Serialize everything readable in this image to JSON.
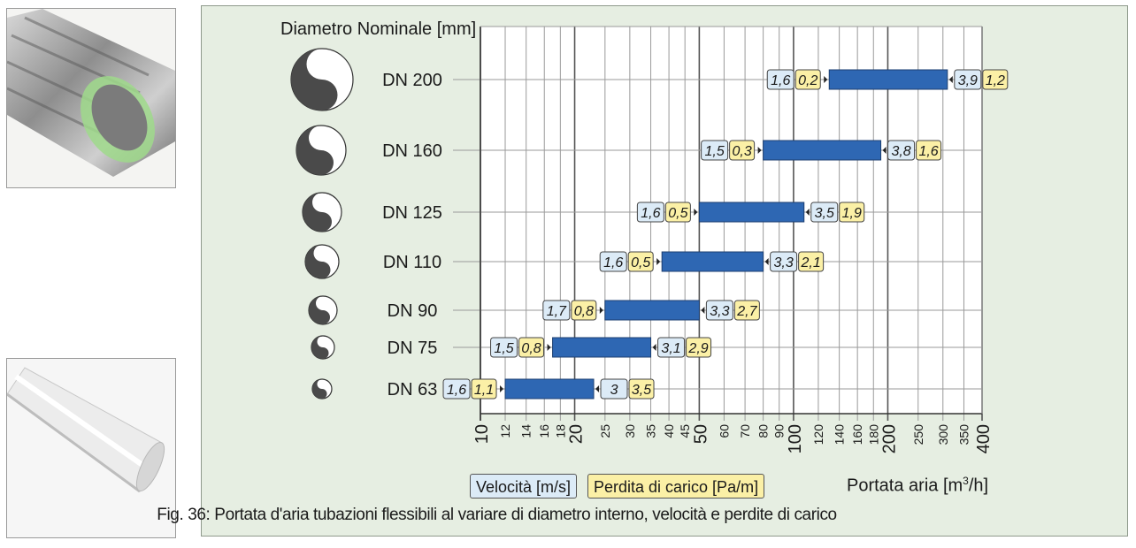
{
  "chart_data": {
    "type": "bar",
    "subtype": "floating-range",
    "x_scale": "log",
    "xlim": [
      10,
      400
    ],
    "title": "Fig. 36: Portata d'aria tubazioni flessibili al variare di diametro interno, velocità e perdite di carico",
    "ylabel": "Diametro Nominale [mm]",
    "xlabel": "Portata aria [m³/h]",
    "xlabel_base": "Portata aria [m",
    "xlabel_sup": "3",
    "xlabel_tail": "/h]",
    "x_ticks": [
      "10",
      "12",
      "14",
      "16",
      "18",
      "20",
      "25",
      "30",
      "35",
      "40",
      "45",
      "50",
      "60",
      "70",
      "80",
      "90",
      "100",
      "120",
      "140",
      "160",
      "180",
      "200",
      "250",
      "300",
      "350",
      "400"
    ],
    "x_ticks_major": [
      "10",
      "20",
      "50",
      "100",
      "200",
      "400"
    ],
    "legend": {
      "velocity": "Velocità [m/s]",
      "pressure_loss": "Perdita di carico [Pa/m]"
    },
    "colors": {
      "bar": "#2e67b3",
      "velocity_box": "#dcebf7",
      "loss_box": "#fbf0a6",
      "panel": "#e6eee2"
    },
    "rows": [
      {
        "label": "DN 200",
        "start": 130,
        "end": 310,
        "v_start": "1,6",
        "p_start": "0,2",
        "v_end": "3,9",
        "p_end": "1,2"
      },
      {
        "label": "DN 160",
        "start": 80,
        "end": 190,
        "v_start": "1,5",
        "p_start": "0,3",
        "v_end": "3,8",
        "p_end": "1,6"
      },
      {
        "label": "DN 125",
        "start": 50,
        "end": 108,
        "v_start": "1,6",
        "p_start": "0,5",
        "v_end": "3,5",
        "p_end": "1,9"
      },
      {
        "label": "DN 110",
        "start": 38,
        "end": 80,
        "v_start": "1,6",
        "p_start": "0,5",
        "v_end": "3,3",
        "p_end": "2,1"
      },
      {
        "label": "DN 90",
        "start": 25,
        "end": 50,
        "v_start": "1,7",
        "p_start": "0,8",
        "v_end": "3,3",
        "p_end": "2,7"
      },
      {
        "label": "DN 75",
        "start": 17,
        "end": 35,
        "v_start": "1,5",
        "p_start": "0,8",
        "v_end": "3,1",
        "p_end": "2,9"
      },
      {
        "label": "DN 63",
        "start": 12,
        "end": 23,
        "v_start": "1,6",
        "p_start": "1,1",
        "v_end": "3",
        "p_end": "3,5"
      }
    ]
  }
}
